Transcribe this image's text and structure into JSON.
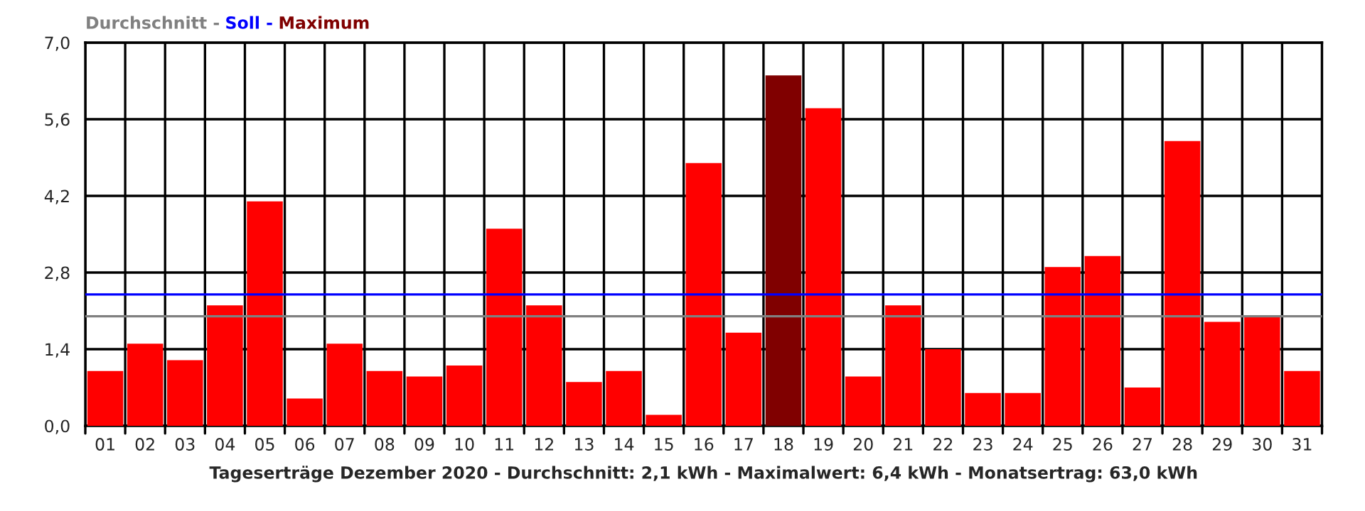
{
  "chart_data": {
    "type": "bar",
    "xlabel": "Tageserträge Dezember 2020 - Durchschnitt: 2,1 kWh - Maximalwert: 6,4 kWh - Monatsertrag: 63,0 kWh",
    "categories": [
      "01",
      "02",
      "03",
      "04",
      "05",
      "06",
      "07",
      "08",
      "09",
      "10",
      "11",
      "12",
      "13",
      "14",
      "15",
      "16",
      "17",
      "18",
      "19",
      "20",
      "21",
      "22",
      "23",
      "24",
      "25",
      "26",
      "27",
      "28",
      "29",
      "30",
      "31"
    ],
    "values": [
      1.0,
      1.5,
      1.2,
      2.2,
      4.1,
      0.5,
      1.5,
      1.0,
      0.9,
      1.1,
      3.6,
      2.2,
      0.8,
      1.0,
      0.2,
      4.8,
      1.7,
      6.4,
      5.8,
      0.9,
      2.2,
      1.4,
      0.6,
      0.6,
      2.9,
      3.1,
      0.7,
      5.2,
      1.9,
      2.0,
      1.0
    ],
    "colors": [
      "#ff0000",
      "#ff0000",
      "#ff0000",
      "#ff0000",
      "#ff0000",
      "#ff0000",
      "#ff0000",
      "#ff0000",
      "#ff0000",
      "#ff0000",
      "#ff0000",
      "#ff0000",
      "#ff0000",
      "#ff0000",
      "#ff0000",
      "#ff0000",
      "#ff0000",
      "#800000",
      "#ff0000",
      "#ff0000",
      "#ff0000",
      "#ff0000",
      "#ff0000",
      "#ff0000",
      "#ff0000",
      "#ff0000",
      "#ff0000",
      "#ff0000",
      "#ff0000",
      "#ff0000",
      "#ff0000"
    ],
    "ylim": [
      0,
      7.0
    ],
    "yticks": [
      {
        "value": 0,
        "label": "0,0"
      },
      {
        "value": 1.4,
        "label": "1,4"
      },
      {
        "value": 2.8,
        "label": "2,8"
      },
      {
        "value": 4.2,
        "label": "4,2"
      },
      {
        "value": 5.6,
        "label": "5,6"
      },
      {
        "value": 7.0,
        "label": "7,0"
      }
    ],
    "grid": true,
    "ref_lines": [
      {
        "axis": "y",
        "value": 2.0,
        "label": "Durchschnitt -",
        "color": "#808080"
      },
      {
        "axis": "y",
        "value": 2.4,
        "label": "Soll -",
        "color": "#0000ff"
      }
    ],
    "annotations": [
      "Maximum"
    ]
  }
}
